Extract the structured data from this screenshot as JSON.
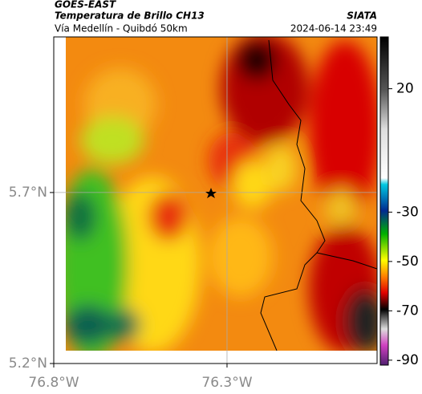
{
  "header": {
    "satellite": "GOES-EAST",
    "title": "Temperatura de Brillo CH13",
    "source": "SIATA",
    "route": "Vía Medellín - Quibdó 50km",
    "datetime": "2024-06-14 23:49"
  },
  "map": {
    "xlim": [
      -76.8,
      -75.867
    ],
    "ylim": [
      5.2,
      6.155
    ],
    "xticks": [
      {
        "value": -76.8,
        "label": "76.8°W"
      },
      {
        "value": -76.3,
        "label": "76.3°W"
      }
    ],
    "yticks": [
      {
        "value": 5.7,
        "label": "5.7°N"
      },
      {
        "value": 5.2,
        "label": "5.2°N"
      }
    ],
    "grid": true
  },
  "colorbar": {
    "lim": [
      -92,
      41
    ],
    "ticks": [
      20,
      -30,
      -50,
      -70,
      -90
    ]
  }
}
